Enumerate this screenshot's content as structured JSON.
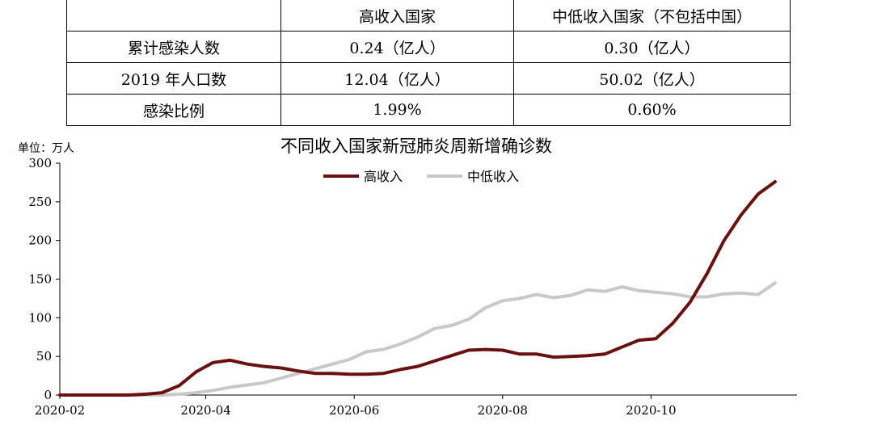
{
  "table": {
    "header": [
      "",
      "高收入国家",
      "中低收入国家（不包括中国）"
    ],
    "rows": [
      [
        "累计感染人数",
        "0.24（亿人）",
        "0.30（亿人）"
      ],
      [
        "2019 年人口数",
        "12.04（亿人）",
        "50.02（亿人）"
      ],
      [
        "感染比例",
        "1.99%",
        "0.60%"
      ]
    ]
  },
  "chart_data": {
    "type": "line",
    "title": "不同收入国家新冠肺炎周新增确诊数",
    "unit_label": "单位：万人",
    "ylim": [
      0,
      300
    ],
    "yticks": [
      0,
      50,
      100,
      150,
      200,
      250,
      300
    ],
    "xticks": [
      "2020-02",
      "2020-04",
      "2020-06",
      "2020-08",
      "2020-10"
    ],
    "x_start": "2020-02-01",
    "x_end": "2020-11-30",
    "legend_position": "top-center",
    "series": [
      {
        "name": "高收入",
        "color": "#6b0f0f",
        "dates": [
          "2020-02-01",
          "2020-02-08",
          "2020-02-15",
          "2020-02-22",
          "2020-02-29",
          "2020-03-07",
          "2020-03-14",
          "2020-03-21",
          "2020-03-28",
          "2020-04-04",
          "2020-04-11",
          "2020-04-18",
          "2020-04-25",
          "2020-05-02",
          "2020-05-09",
          "2020-05-16",
          "2020-05-23",
          "2020-05-30",
          "2020-06-06",
          "2020-06-13",
          "2020-06-20",
          "2020-06-27",
          "2020-07-04",
          "2020-07-11",
          "2020-07-18",
          "2020-07-25",
          "2020-08-01",
          "2020-08-08",
          "2020-08-15",
          "2020-08-22",
          "2020-08-29",
          "2020-09-05",
          "2020-09-12",
          "2020-09-19",
          "2020-09-26",
          "2020-10-03",
          "2020-10-10",
          "2020-10-17",
          "2020-10-24",
          "2020-10-31",
          "2020-11-07",
          "2020-11-14",
          "2020-11-21"
        ],
        "values": [
          0,
          0,
          0,
          0,
          0,
          1,
          3,
          12,
          30,
          42,
          45,
          40,
          37,
          35,
          31,
          28,
          28,
          27,
          27,
          28,
          33,
          37,
          44,
          51,
          58,
          59,
          58,
          53,
          53,
          49,
          50,
          51,
          53,
          62,
          71,
          73,
          93,
          120,
          157,
          200,
          233,
          260,
          276
        ]
      },
      {
        "name": "中低收入",
        "color": "#c8c8c8",
        "dates": [
          "2020-02-01",
          "2020-02-08",
          "2020-02-15",
          "2020-02-22",
          "2020-02-29",
          "2020-03-07",
          "2020-03-14",
          "2020-03-21",
          "2020-03-28",
          "2020-04-04",
          "2020-04-11",
          "2020-04-18",
          "2020-04-25",
          "2020-05-02",
          "2020-05-09",
          "2020-05-16",
          "2020-05-23",
          "2020-05-30",
          "2020-06-06",
          "2020-06-13",
          "2020-06-20",
          "2020-06-27",
          "2020-07-04",
          "2020-07-11",
          "2020-07-18",
          "2020-07-25",
          "2020-08-01",
          "2020-08-08",
          "2020-08-15",
          "2020-08-22",
          "2020-08-29",
          "2020-09-05",
          "2020-09-12",
          "2020-09-19",
          "2020-09-26",
          "2020-10-03",
          "2020-10-10",
          "2020-10-17",
          "2020-10-24",
          "2020-10-31",
          "2020-11-07",
          "2020-11-14",
          "2020-11-21"
        ],
        "values": [
          0,
          0,
          0,
          0,
          0,
          0,
          0,
          1,
          3,
          6,
          10,
          13,
          16,
          22,
          28,
          34,
          40,
          46,
          56,
          59,
          66,
          75,
          86,
          90,
          98,
          113,
          122,
          125,
          130,
          126,
          129,
          136,
          134,
          140,
          135,
          133,
          131,
          127,
          127,
          131,
          132,
          130,
          145
        ]
      }
    ]
  }
}
